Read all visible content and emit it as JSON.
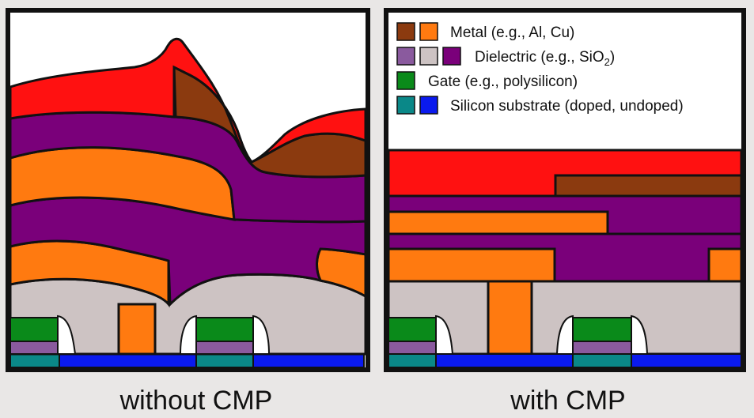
{
  "colors": {
    "metal_dark": "#8b3a0f",
    "metal_light": "#ff7a10",
    "dielectric_light_purple": "#8a5a9e",
    "dielectric_gray": "#cdc3c3",
    "dielectric_purple": "#7a007a",
    "gate": "#0a8a1a",
    "substrate_teal": "#0a8888",
    "substrate_blue": "#0a1aee",
    "red": "#ff1111",
    "outline": "#111111",
    "page_bg": "#e9e7e6"
  },
  "legend": {
    "metal": "Metal (e.g., Al, Cu)",
    "dielectric_prefix": "Dielectric (e.g., SiO",
    "dielectric_sub": "2",
    "dielectric_suffix": ")",
    "gate": "Gate (e.g., polysilicon)",
    "substrate": "Silicon substrate (doped, undoped)"
  },
  "captions": {
    "left": "without CMP",
    "right": "with CMP"
  }
}
